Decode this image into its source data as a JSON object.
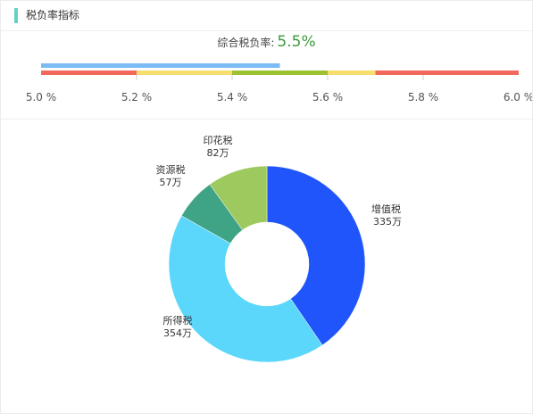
{
  "header": {
    "title": "税负率指标"
  },
  "rate": {
    "label": "综合税负率:",
    "value": "5.5%",
    "value_color": "#3a9a3a",
    "accent_color": "#62d2c2"
  },
  "chart_data": [
    {
      "type": "bar",
      "orientation": "horizontal",
      "xlim": [
        5.0,
        6.0
      ],
      "ticks": [
        "5.0 %",
        "5.2 %",
        "5.4 %",
        "5.6 %",
        "5.8 %",
        "6.0 %"
      ],
      "tick_values": [
        5.0,
        5.2,
        5.4,
        5.6,
        5.8,
        6.0
      ],
      "value": 5.5,
      "value_color": "#7bbcf4",
      "bands": [
        {
          "from": 5.0,
          "to": 5.2,
          "color": "#f3685c"
        },
        {
          "from": 5.2,
          "to": 5.4,
          "color": "#f6dd6e"
        },
        {
          "from": 5.4,
          "to": 5.6,
          "color": "#9cc232"
        },
        {
          "from": 5.6,
          "to": 5.7,
          "color": "#f6dd6e"
        },
        {
          "from": 5.7,
          "to": 6.0,
          "color": "#f3685c"
        }
      ]
    },
    {
      "type": "pie",
      "donut": true,
      "slices": [
        {
          "label": "增值税",
          "value": 335,
          "value_text": "335万",
          "color": "#1f55fb"
        },
        {
          "label": "所得税",
          "value": 354,
          "value_text": "354万",
          "color": "#5ad7fb"
        },
        {
          "label": "资源税",
          "value": 57,
          "value_text": "57万",
          "color": "#3fa385"
        },
        {
          "label": "印花税",
          "value": 82,
          "value_text": "82万",
          "color": "#9ec95f"
        }
      ]
    }
  ]
}
